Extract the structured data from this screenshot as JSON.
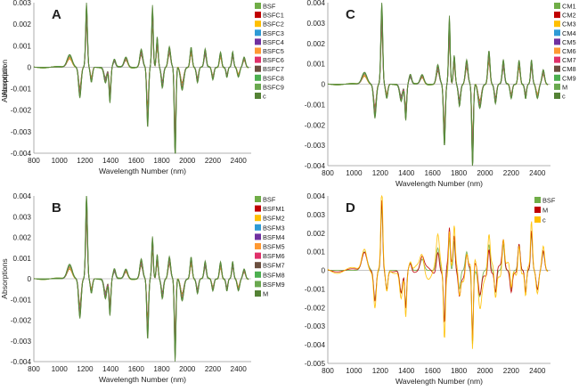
{
  "chart_data": [
    {
      "panel": "A",
      "type": "line",
      "xlabel": "Wavelength Number (nm)",
      "ylabel": "Absorption",
      "xlim": [
        800,
        2500
      ],
      "ylim": [
        -0.004,
        0.003
      ],
      "xticks": [
        800,
        1000,
        1200,
        1400,
        1600,
        1800,
        2000,
        2200,
        2400
      ],
      "yticks": [
        -0.004,
        -0.003,
        -0.002,
        -0.001,
        0,
        0.001,
        0.002,
        0.003
      ],
      "ytick_labels": [
        "-0.004",
        "-0.003",
        "-0.002",
        "-0.001",
        "0",
        "0.001",
        "0.002",
        "0.003"
      ],
      "legend": "right",
      "series": [
        {
          "name": "BSF",
          "color": "#70ad47"
        },
        {
          "name": "BSFC1",
          "color": "#c00000"
        },
        {
          "name": "BSFC2",
          "color": "#ffc000"
        },
        {
          "name": "BSFC3",
          "color": "#2e9bd6"
        },
        {
          "name": "BSFC4",
          "color": "#7030a0"
        },
        {
          "name": "BSFC5",
          "color": "#ff9933"
        },
        {
          "name": "BSFC6",
          "color": "#e0306a"
        },
        {
          "name": "BSFC7",
          "color": "#6b4f3f"
        },
        {
          "name": "BSFC8",
          "color": "#4caf50"
        },
        {
          "name": "BSFC9",
          "color": "#6aa84f"
        },
        {
          "name": "c",
          "color": "#548235"
        }
      ]
    },
    {
      "panel": "C",
      "type": "line",
      "xlabel": "Wavelength Number (nm)",
      "ylabel": "Absorption",
      "xlim": [
        800,
        2500
      ],
      "ylim": [
        -0.004,
        0.004
      ],
      "xticks": [
        800,
        1000,
        1200,
        1400,
        1600,
        1800,
        2000,
        2200,
        2400
      ],
      "yticks": [
        -0.004,
        -0.003,
        -0.002,
        -0.001,
        0,
        0.001,
        0.002,
        0.003,
        0.004
      ],
      "ytick_labels": [
        "-0.004",
        "-0.003",
        "-0.002",
        "-0.001",
        "0",
        "0.001",
        "0.002",
        "0.003",
        "0.004"
      ],
      "legend": "right",
      "series": [
        {
          "name": "CM1",
          "color": "#70ad47"
        },
        {
          "name": "CM2",
          "color": "#c00000"
        },
        {
          "name": "CM3",
          "color": "#ffc000"
        },
        {
          "name": "CM4",
          "color": "#2e9bd6"
        },
        {
          "name": "CM5",
          "color": "#7030a0"
        },
        {
          "name": "CM6",
          "color": "#ff9933"
        },
        {
          "name": "CM7",
          "color": "#e0306a"
        },
        {
          "name": "CM8",
          "color": "#6b4f3f"
        },
        {
          "name": "CM9",
          "color": "#4caf50"
        },
        {
          "name": "M",
          "color": "#6aa84f"
        },
        {
          "name": "c",
          "color": "#548235"
        }
      ]
    },
    {
      "panel": "B",
      "type": "line",
      "xlabel": "Wavelength Number (nm)",
      "ylabel": "Absorptions",
      "xlim": [
        800,
        2500
      ],
      "ylim": [
        -0.004,
        0.004
      ],
      "xticks": [
        800,
        1000,
        1200,
        1400,
        1600,
        1800,
        2000,
        2200,
        2400
      ],
      "yticks": [
        -0.004,
        -0.003,
        -0.002,
        -0.001,
        0,
        0.001,
        0.002,
        0.003,
        0.004
      ],
      "ytick_labels": [
        "-0.004",
        "-0.003",
        "-0.002",
        "-0.001",
        "0",
        "0.001",
        "0.002",
        "0.003",
        "0.004"
      ],
      "legend": "right",
      "series": [
        {
          "name": "BSF",
          "color": "#70ad47"
        },
        {
          "name": "BSFM1",
          "color": "#c00000"
        },
        {
          "name": "BSFM2",
          "color": "#ffc000"
        },
        {
          "name": "BSFM3",
          "color": "#2e9bd6"
        },
        {
          "name": "BSFM4",
          "color": "#7030a0"
        },
        {
          "name": "BSFM5",
          "color": "#ff9933"
        },
        {
          "name": "BSFM6",
          "color": "#e0306a"
        },
        {
          "name": "BSFM7",
          "color": "#6b4f3f"
        },
        {
          "name": "BSFM8",
          "color": "#4caf50"
        },
        {
          "name": "BSFM9",
          "color": "#6aa84f"
        },
        {
          "name": "M",
          "color": "#548235"
        }
      ]
    },
    {
      "panel": "D",
      "type": "line",
      "xlabel": "Wavelength Number (nm)",
      "ylabel": "",
      "xlim": [
        800,
        2500
      ],
      "ylim": [
        -0.005,
        0.004
      ],
      "xticks": [
        800,
        1000,
        1200,
        1400,
        1600,
        1800,
        2000,
        2200,
        2400
      ],
      "yticks": [
        -0.005,
        -0.004,
        -0.003,
        -0.002,
        -0.001,
        0,
        0.001,
        0.002,
        0.003,
        0.004
      ],
      "ytick_labels": [
        "-0.005",
        "-0.004",
        "-0.003",
        "-0.002",
        "-0.001",
        "0",
        "0.001",
        "0.002",
        "0.003",
        "0.004"
      ],
      "legend": "top-right",
      "series": [
        {
          "name": "BSF",
          "color": "#70ad47"
        },
        {
          "name": "M",
          "color": "#c00000"
        },
        {
          "name": "c",
          "color": "#ffc000"
        }
      ]
    }
  ]
}
